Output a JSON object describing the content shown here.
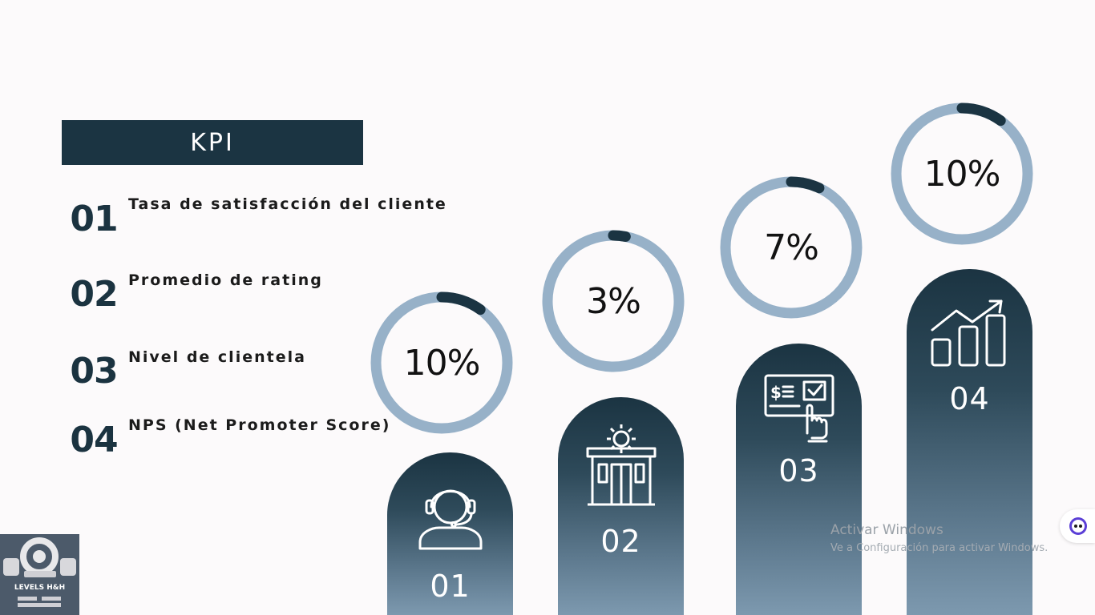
{
  "banner": {
    "title": "KPI"
  },
  "kpis": [
    {
      "num": "01",
      "label": "Tasa de satisfacción del cliente"
    },
    {
      "num": "02",
      "label": "Promedio de rating"
    },
    {
      "num": "03",
      "label": "Nivel de clientela"
    },
    {
      "num": "04",
      "label": "NPS (Net Promoter Score)"
    }
  ],
  "columns": [
    {
      "num": "01",
      "icon": "headset-agent-icon"
    },
    {
      "num": "02",
      "icon": "store-gear-icon"
    },
    {
      "num": "03",
      "icon": "payment-terminal-icon"
    },
    {
      "num": "04",
      "icon": "growth-chart-icon"
    }
  ],
  "rings": [
    {
      "value": "10%",
      "progress": 0.1
    },
    {
      "value": "3%",
      "progress": 0.03
    },
    {
      "value": "7%",
      "progress": 0.07
    },
    {
      "value": "10%",
      "progress": 0.1
    }
  ],
  "logo": {
    "text": "LEVELS H&H"
  },
  "watermark": {
    "title": "Activar Windows",
    "subtitle": "Ve a Configuración para activar Windows."
  },
  "colors": {
    "primary": "#1b3442",
    "ring_track": "#97b1c8",
    "ring_progress": "#1b3442",
    "background": "#fcfafb"
  }
}
